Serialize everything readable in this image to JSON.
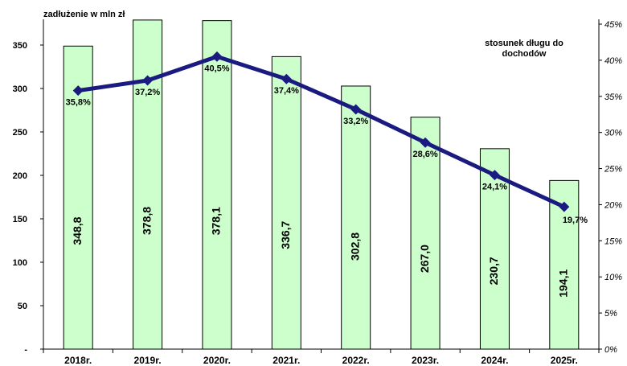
{
  "chart_data": {
    "type": "bar+line",
    "ylabel": "zadłużenie w mln zł",
    "y2label_line1": "stosunek długu do",
    "y2label_line2": "dochodów",
    "categories": [
      "2018r.",
      "2019r.",
      "2020r.",
      "2021r.",
      "2022r.",
      "2023r.",
      "2024r.",
      "2025r."
    ],
    "bar_values": [
      348.8,
      378.8,
      378.1,
      336.7,
      302.8,
      267.0,
      230.7,
      194.1
    ],
    "bar_labels": [
      "348,8",
      "378,8",
      "378,1",
      "336,7",
      "302,8",
      "267,0",
      "230,7",
      "194,1"
    ],
    "line_values": [
      35.8,
      37.2,
      40.5,
      37.4,
      33.2,
      28.6,
      24.1,
      19.7
    ],
    "line_labels": [
      "35,8%",
      "37,2%",
      "40,5%",
      "37,4%",
      "33,2%",
      "28,6%",
      "24,1%",
      "19,7%"
    ],
    "ylim": [
      0,
      350
    ],
    "y_ticks": [
      0,
      50,
      100,
      150,
      200,
      250,
      300,
      350
    ],
    "y_tick_labels": [
      "-",
      "50",
      "100",
      "150",
      "200",
      "250",
      "300",
      "350"
    ],
    "y2lim": [
      0,
      45
    ],
    "y2_ticks": [
      0,
      5,
      10,
      15,
      20,
      25,
      30,
      35,
      40,
      45
    ],
    "y2_tick_labels": [
      "0%",
      "5%",
      "10%",
      "15%",
      "20%",
      "25%",
      "30%",
      "35%",
      "40%",
      "45%"
    ],
    "grid": false,
    "colors": {
      "bar_fill": "#ccffcc",
      "bar_stroke": "#000000",
      "line": "#1a1a80",
      "marker": "#1a1a80"
    }
  }
}
